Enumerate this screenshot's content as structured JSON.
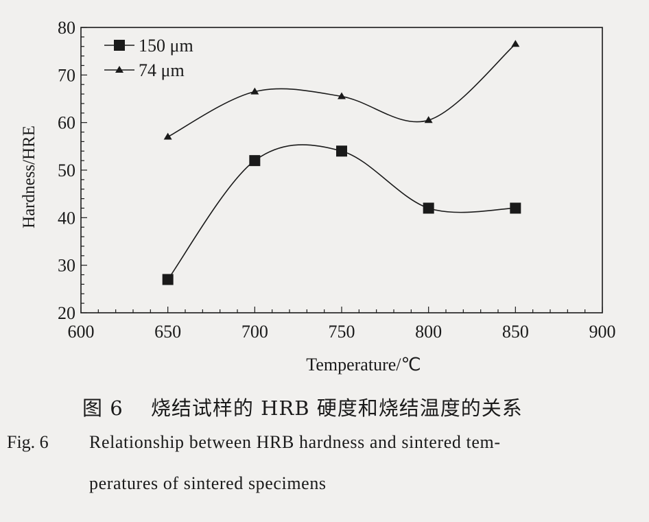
{
  "chart_data": {
    "type": "line",
    "xlabel": "Temperature/℃",
    "ylabel": "Hardness/HRE",
    "xlim": [
      600,
      900
    ],
    "ylim": [
      20,
      80
    ],
    "xticks": [
      600,
      650,
      700,
      750,
      800,
      850,
      900
    ],
    "yticks": [
      20,
      30,
      40,
      50,
      60,
      70,
      80
    ],
    "grid": false,
    "legend_position": "top-left",
    "series": [
      {
        "name": "150 μm",
        "marker": "square",
        "x": [
          650,
          700,
          750,
          800,
          850
        ],
        "y": [
          27,
          52,
          54,
          42,
          42
        ]
      },
      {
        "name": "74 μm",
        "marker": "triangle",
        "x": [
          650,
          700,
          750,
          800,
          850
        ],
        "y": [
          57,
          66.5,
          65.5,
          60.5,
          76.5
        ]
      }
    ]
  },
  "caption": {
    "cn": "图 6　 烧结试样的 HRB 硬度和烧结温度的关系",
    "en_label": "Fig. 6",
    "en_line1": "Relationship between HRB hardness and sintered tem-",
    "en_line2": "peratures of sintered specimens"
  }
}
